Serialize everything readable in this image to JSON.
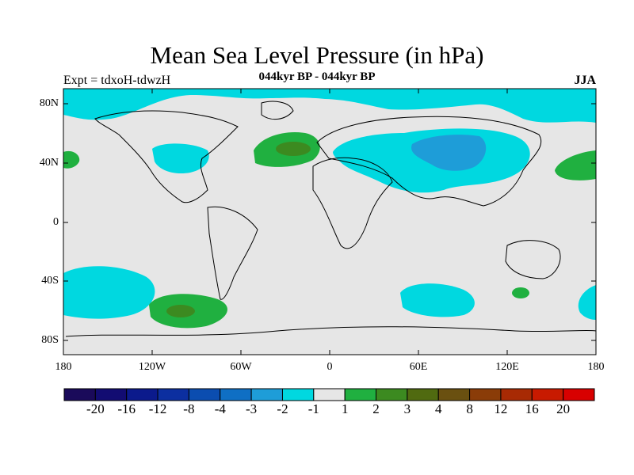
{
  "title": "Mean Sea Level Pressure (in hPa)",
  "subtitle": "044kyr BP - 044kyr BP",
  "left_label": "Expt = tdxoH-tdwzH",
  "right_label": "JJA",
  "lat_labels": [
    "80N",
    "40N",
    "0",
    "40S",
    "80S"
  ],
  "lon_labels": [
    "180",
    "120W",
    "60W",
    "0",
    "60E",
    "120E",
    "180"
  ],
  "colorbar": {
    "colors": [
      "#1a0a5a",
      "#120c72",
      "#0b1a8c",
      "#0c2fa0",
      "#0b4db0",
      "#0f6fc4",
      "#1e9dd8",
      "#00d8e0",
      "#e6e6e6",
      "#20b040",
      "#3c8a20",
      "#506a10",
      "#6a5010",
      "#8a3c08",
      "#a82a04",
      "#c81a00",
      "#d80000"
    ],
    "labels": [
      "-20",
      "-16",
      "-12",
      "-8",
      "-4",
      "-3",
      "-2",
      "-1",
      "1",
      "2",
      "3",
      "4",
      "8",
      "12",
      "16",
      "20"
    ]
  }
}
